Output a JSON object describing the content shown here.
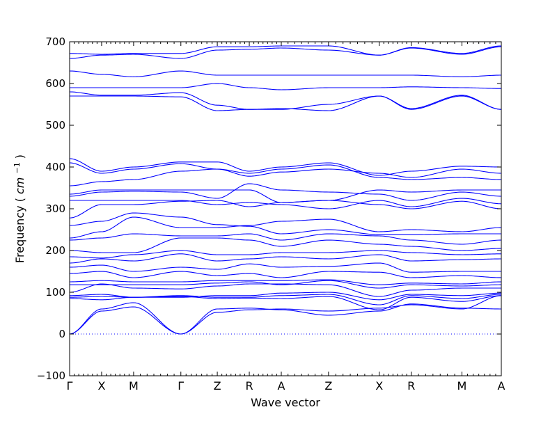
{
  "chart_data": {
    "type": "line",
    "title": "",
    "xlabel": "Wave vector",
    "ylabel": "Frequency",
    "ylabel_unit_base": "cm",
    "ylabel_unit_exp": "−1",
    "ylim": [
      -100,
      700
    ],
    "yticks": [
      -100,
      0,
      100,
      200,
      300,
      400,
      500,
      600,
      700
    ],
    "xlim": [
      0,
      8.77
    ],
    "grid": false,
    "legend": "none",
    "line_color": "#0000ff",
    "zero_line": {
      "y": 0,
      "style": "dotted",
      "color": "#0000ff"
    },
    "high_symmetry_points": [
      {
        "label": "Γ",
        "x": 0.0
      },
      {
        "label": "X",
        "x": 0.65
      },
      {
        "label": "M",
        "x": 1.3
      },
      {
        "label": "Γ",
        "x": 2.26
      },
      {
        "label": "Z",
        "x": 3.0
      },
      {
        "label": "R",
        "x": 3.65
      },
      {
        "label": "A",
        "x": 4.3
      },
      {
        "label": "Z",
        "x": 5.26
      },
      {
        "label": "X",
        "x": 6.29
      },
      {
        "label": "R",
        "x": 6.94
      },
      {
        "label": "M",
        "x": 7.97
      },
      {
        "label": "A",
        "x": 8.77
      }
    ],
    "segment_ends": [
      0.0,
      0.65,
      1.3,
      2.26,
      3.0,
      3.65,
      4.3,
      5.26,
      6.29,
      6.94,
      7.97,
      8.77
    ],
    "bands": [
      [
        0,
        55,
        65,
        0,
        52,
        58,
        60,
        55,
        62,
        70,
        60,
        92
      ],
      [
        0,
        60,
        75,
        0,
        60,
        62,
        58,
        45,
        55,
        72,
        62,
        60
      ],
      [
        85,
        82,
        88,
        90,
        85,
        86,
        85,
        90,
        58,
        88,
        78,
        92
      ],
      [
        88,
        90,
        88,
        92,
        88,
        88,
        92,
        95,
        70,
        92,
        85,
        95
      ],
      [
        92,
        95,
        88,
        88,
        92,
        92,
        98,
        100,
        82,
        95,
        92,
        98
      ],
      [
        100,
        120,
        110,
        108,
        115,
        120,
        120,
        118,
        90,
        105,
        110,
        110
      ],
      [
        118,
        118,
        118,
        118,
        122,
        125,
        118,
        128,
        110,
        118,
        115,
        118
      ],
      [
        125,
        128,
        125,
        125,
        128,
        128,
        128,
        130,
        118,
        122,
        120,
        125
      ],
      [
        145,
        150,
        135,
        150,
        140,
        145,
        135,
        150,
        148,
        135,
        140,
        135
      ],
      [
        160,
        165,
        150,
        160,
        155,
        168,
        160,
        162,
        170,
        148,
        150,
        150
      ],
      [
        170,
        180,
        175,
        192,
        175,
        180,
        185,
        180,
        190,
        175,
        178,
        180
      ],
      [
        185,
        182,
        190,
        200,
        190,
        190,
        195,
        195,
        200,
        195,
        190,
        192
      ],
      [
        200,
        195,
        195,
        230,
        230,
        225,
        210,
        225,
        215,
        210,
        200,
        205
      ],
      [
        225,
        230,
        240,
        235,
        235,
        240,
        225,
        240,
        235,
        225,
        215,
        225
      ],
      [
        230,
        245,
        280,
        255,
        255,
        260,
        270,
        275,
        245,
        250,
        245,
        255
      ],
      [
        260,
        270,
        290,
        280,
        262,
        258,
        240,
        250,
        238,
        238,
        240,
        240
      ],
      [
        278,
        310,
        310,
        318,
        320,
        305,
        315,
        320,
        310,
        300,
        318,
        300
      ],
      [
        320,
        320,
        320,
        320,
        310,
        315,
        310,
        300,
        320,
        305,
        325,
        312
      ],
      [
        330,
        340,
        342,
        340,
        325,
        360,
        345,
        340,
        335,
        320,
        340,
        330
      ],
      [
        335,
        345,
        345,
        345,
        345,
        345,
        315,
        320,
        345,
        340,
        345,
        345
      ],
      [
        355,
        365,
        370,
        390,
        395,
        385,
        395,
        405,
        375,
        370,
        375,
        370
      ],
      [
        410,
        385,
        395,
        408,
        395,
        378,
        388,
        395,
        385,
        375,
        395,
        385
      ],
      [
        420,
        390,
        400,
        412,
        412,
        390,
        400,
        410,
        380,
        390,
        402,
        400
      ],
      [
        570,
        570,
        570,
        568,
        535,
        538,
        540,
        535,
        570,
        538,
        570,
        538
      ],
      [
        580,
        572,
        572,
        578,
        548,
        538,
        538,
        550,
        570,
        540,
        572,
        538
      ],
      [
        590,
        590,
        590,
        590,
        600,
        590,
        585,
        590,
        590,
        592,
        590,
        588
      ],
      [
        630,
        622,
        616,
        630,
        620,
        620,
        620,
        620,
        620,
        620,
        616,
        620
      ],
      [
        660,
        668,
        670,
        660,
        680,
        682,
        685,
        680,
        668,
        685,
        670,
        688
      ],
      [
        672,
        670,
        672,
        672,
        688,
        688,
        690,
        690,
        668,
        686,
        672,
        690
      ]
    ]
  }
}
